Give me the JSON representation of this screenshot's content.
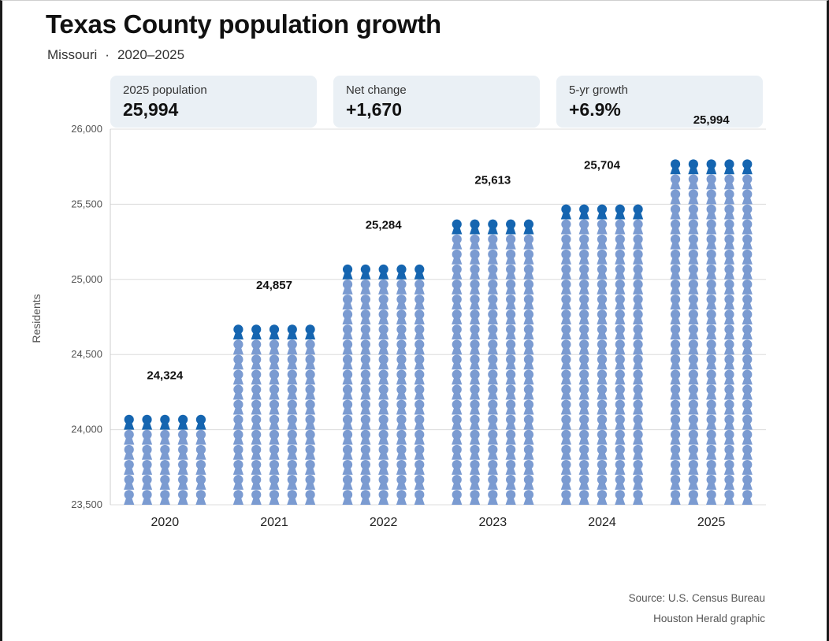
{
  "title": "Texas County population growth",
  "subtitle": {
    "place": "Missouri",
    "separator": "·",
    "period": "2020–2025"
  },
  "cards": [
    {
      "label": "2025 population",
      "value": "25,994"
    },
    {
      "label": "Net change",
      "value": "+1,670"
    },
    {
      "label": "5-yr growth",
      "value": "+6.9%"
    }
  ],
  "source": {
    "line1": "Source: U.S. Census Bureau",
    "line2": "Houston Herald graphic"
  },
  "colors": {
    "person": "#7b9bd1",
    "person_top": "#1565b0",
    "grid": "#dcdcdc",
    "axis_text": "#555555"
  },
  "chart_data": {
    "type": "bar",
    "encoding": "pictograph",
    "categories": [
      "2020",
      "2021",
      "2022",
      "2023",
      "2024",
      "2025"
    ],
    "values": [
      24324,
      24857,
      25284,
      25613,
      25704,
      25994
    ],
    "data_labels": [
      "24,324",
      "24,857",
      "25,284",
      "25,613",
      "25,704",
      "25,994"
    ],
    "ylabel": "Residents",
    "ylim": [
      23500,
      26000
    ],
    "yticks": [
      23500,
      24000,
      24500,
      25000,
      25500,
      26000
    ],
    "ytick_labels": [
      "23,500",
      "24,000",
      "24,500",
      "25,000",
      "25,500",
      "26,000"
    ],
    "grid": true,
    "legend": "none"
  }
}
